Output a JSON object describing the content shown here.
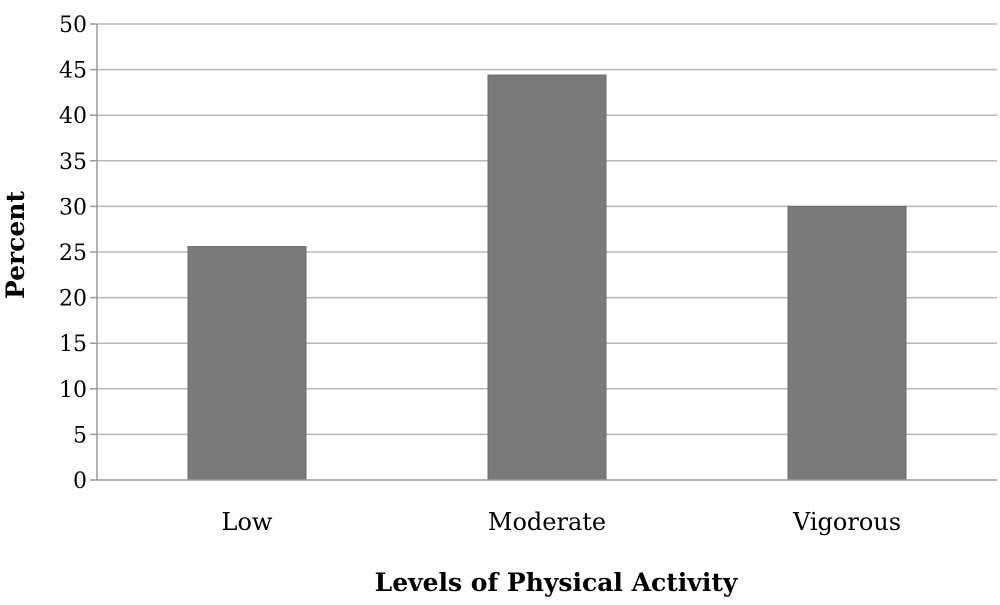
{
  "chart_data": {
    "type": "bar",
    "title": "",
    "xlabel": "Levels of Physical Activity",
    "ylabel": "Percent",
    "categories": [
      "Low",
      "Moderate",
      "Vigorous"
    ],
    "values": [
      25.6,
      44.4,
      30.0
    ],
    "ylim": [
      0,
      50
    ],
    "yticks": [
      0,
      5,
      10,
      15,
      20,
      25,
      30,
      35,
      40,
      45,
      50
    ],
    "grid": true,
    "legend": "none",
    "bar_color": "#7a7a7a"
  }
}
